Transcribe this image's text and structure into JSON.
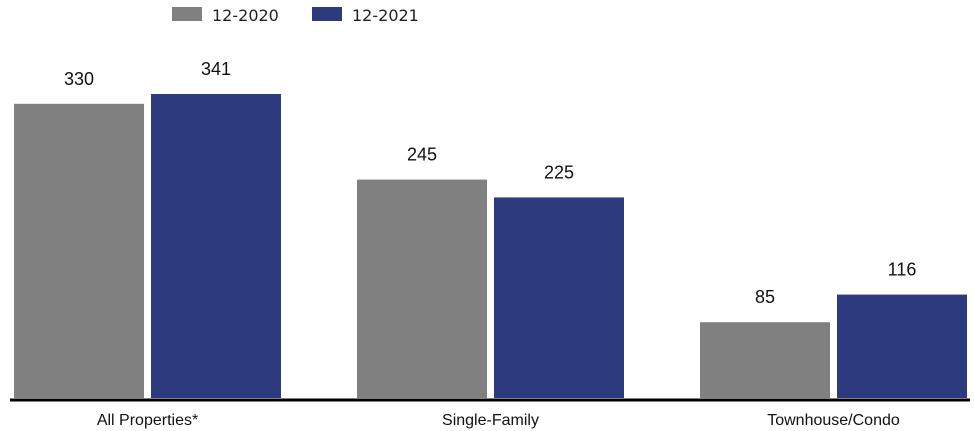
{
  "chart_data": {
    "type": "bar",
    "categories": [
      "All Properties*",
      "Single-Family",
      "Townhouse/Condo"
    ],
    "series": [
      {
        "name": "12-2020",
        "values": [
          330,
          245,
          85
        ],
        "color": "#808080"
      },
      {
        "name": "12-2021",
        "values": [
          341,
          225,
          116
        ],
        "color": "#2e3a7e"
      }
    ],
    "ylim": [
      0,
      400
    ],
    "grid": false,
    "legend_position": "top-left",
    "baseline_color": "#000000"
  }
}
